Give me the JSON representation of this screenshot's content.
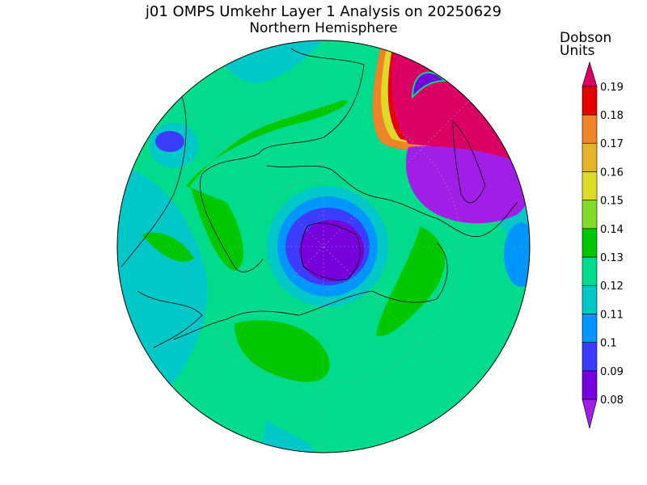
{
  "title": "j01 OMPS Umkehr Layer 1 Analysis on 20250629",
  "subtitle": "Northern Hemisphere",
  "colorbar": {
    "title_lines": [
      "Dobson",
      "Units"
    ],
    "levels": [
      0.08,
      0.09,
      0.1,
      0.11,
      0.12,
      0.13,
      0.14,
      0.15,
      0.16,
      0.17,
      0.18,
      0.19
    ],
    "colors": [
      "#a01ee6",
      "#7800dc",
      "#3c3cff",
      "#0096ff",
      "#00c8c8",
      "#00dc8c",
      "#00c800",
      "#80dc28",
      "#dcdc28",
      "#e6b428",
      "#f08228",
      "#e60000",
      "#dc0064"
    ]
  }
}
